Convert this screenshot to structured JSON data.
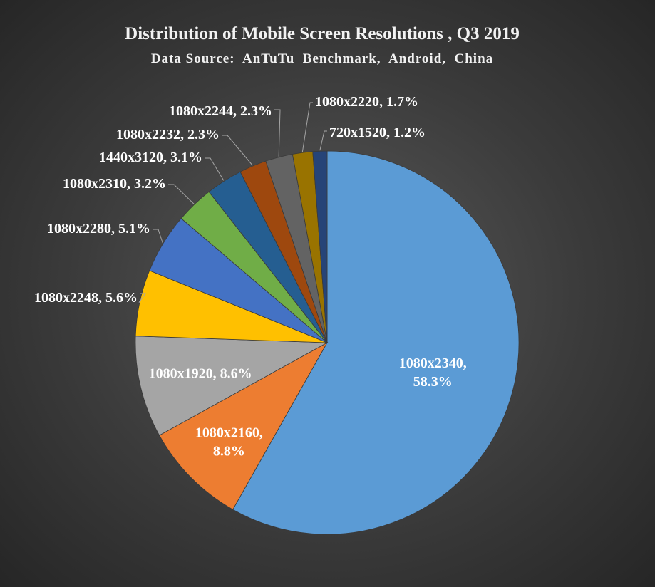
{
  "chart_data": {
    "type": "pie",
    "title": "Distribution of Mobile Screen Resolutions , Q3 2019",
    "subtitle": "Data Source:  AnTuTu  Benchmark,  Android,  China",
    "slices": [
      {
        "label": "1080x2340",
        "value": 58.3,
        "display": "58.3%",
        "color": "#5b9bd5"
      },
      {
        "label": "1080x2160",
        "value": 8.8,
        "display": "8.8%",
        "color": "#ed7d31"
      },
      {
        "label": "1080x1920",
        "value": 8.6,
        "display": "8.6%",
        "color": "#a5a5a5"
      },
      {
        "label": "1080x2248",
        "value": 5.6,
        "display": "5.6%",
        "color": "#ffc000"
      },
      {
        "label": "1080x2280",
        "value": 5.1,
        "display": "5.1%",
        "color": "#4472c4"
      },
      {
        "label": "1080x2310",
        "value": 3.2,
        "display": "3.2%",
        "color": "#70ad47"
      },
      {
        "label": "1440x3120",
        "value": 3.1,
        "display": "3.1%",
        "color": "#255e91"
      },
      {
        "label": "1080x2232",
        "value": 2.3,
        "display": "2.3%",
        "color": "#9e480e"
      },
      {
        "label": "1080x2244",
        "value": 2.3,
        "display": "2.3%",
        "color": "#636363"
      },
      {
        "label": "1080x2220",
        "value": 1.7,
        "display": "1.7%",
        "color": "#997300"
      },
      {
        "label": "720x1520",
        "value": 1.2,
        "display": "1.2%",
        "color": "#264478"
      }
    ]
  }
}
